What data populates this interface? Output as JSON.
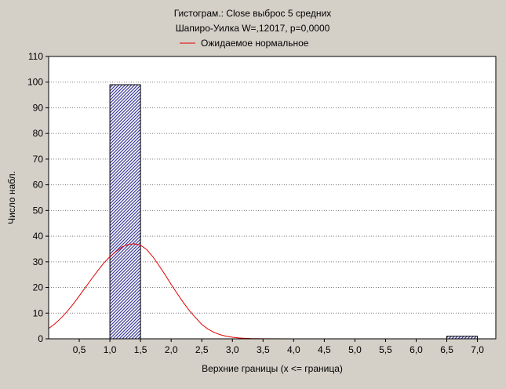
{
  "chart_data": {
    "type": "bar",
    "title": "Гистограм.: Close выброс 5 средних",
    "subtitle": "Шапиро-Уилка W=,12017, p=0,0000",
    "legend": [
      {
        "label": "Ожидаемое нормальное",
        "color": "#e00000"
      }
    ],
    "xlabel": "Верхние границы (x <= граница)",
    "ylabel": "Число набл.",
    "xlim": [
      0,
      7.3
    ],
    "ylim": [
      0,
      110
    ],
    "xticks": [
      {
        "value": 0.5,
        "label": "0,5"
      },
      {
        "value": 1.0,
        "label": "1,0"
      },
      {
        "value": 1.5,
        "label": "1,5"
      },
      {
        "value": 2.0,
        "label": "2,0"
      },
      {
        "value": 2.5,
        "label": "2,5"
      },
      {
        "value": 3.0,
        "label": "3,0"
      },
      {
        "value": 3.5,
        "label": "3,5"
      },
      {
        "value": 4.0,
        "label": "4,0"
      },
      {
        "value": 4.5,
        "label": "4,5"
      },
      {
        "value": 5.0,
        "label": "5,0"
      },
      {
        "value": 5.5,
        "label": "5,5"
      },
      {
        "value": 6.0,
        "label": "6,0"
      },
      {
        "value": 6.5,
        "label": "6,5"
      },
      {
        "value": 7.0,
        "label": "7,0"
      }
    ],
    "yticks": [
      0,
      10,
      20,
      30,
      40,
      50,
      60,
      70,
      80,
      90,
      100,
      110
    ],
    "grid": true,
    "bars": [
      {
        "from": 1.0,
        "to": 1.5,
        "value": 99
      },
      {
        "from": 6.5,
        "to": 7.0,
        "value": 1
      }
    ],
    "bar_fill": "#3a3a9a",
    "normal_curve": {
      "color": "#e00000",
      "points": [
        [
          0.0,
          4.0
        ],
        [
          0.1,
          5.8
        ],
        [
          0.2,
          8.0
        ],
        [
          0.3,
          10.6
        ],
        [
          0.4,
          13.5
        ],
        [
          0.5,
          16.7
        ],
        [
          0.6,
          20.0
        ],
        [
          0.7,
          23.3
        ],
        [
          0.8,
          26.5
        ],
        [
          0.9,
          29.5
        ],
        [
          1.0,
          32.0
        ],
        [
          1.1,
          34.0
        ],
        [
          1.2,
          35.8
        ],
        [
          1.3,
          36.8
        ],
        [
          1.4,
          37.0
        ],
        [
          1.5,
          36.5
        ],
        [
          1.6,
          34.8
        ],
        [
          1.7,
          32.0
        ],
        [
          1.8,
          28.6
        ],
        [
          1.9,
          25.0
        ],
        [
          2.0,
          21.2
        ],
        [
          2.1,
          17.6
        ],
        [
          2.2,
          14.1
        ],
        [
          2.3,
          10.9
        ],
        [
          2.4,
          8.2
        ],
        [
          2.5,
          5.6
        ],
        [
          2.6,
          3.8
        ],
        [
          2.7,
          2.5
        ],
        [
          2.8,
          1.6
        ],
        [
          2.9,
          1.0
        ],
        [
          3.0,
          0.6
        ],
        [
          3.1,
          0.35
        ],
        [
          3.2,
          0.2
        ],
        [
          3.3,
          0.1
        ],
        [
          3.5,
          0.03
        ],
        [
          4.0,
          0.0
        ],
        [
          7.3,
          0.0
        ]
      ]
    }
  }
}
